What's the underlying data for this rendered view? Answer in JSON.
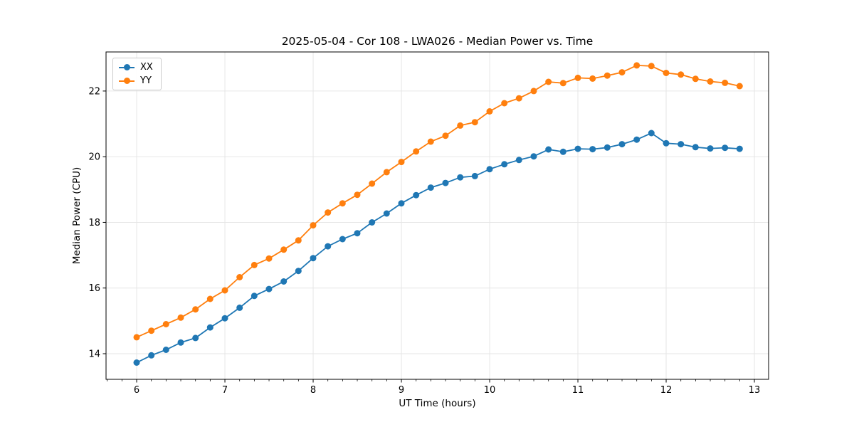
{
  "chart_data": {
    "type": "line",
    "title": "2025-05-04 - Cor 108 - LWA026 - Median Power vs. Time",
    "xlabel": "UT Time (hours)",
    "ylabel": "Median Power (CPU)",
    "grid": true,
    "legend_position": "upper-left",
    "xlim": [
      5.653,
      13.161
    ],
    "ylim": [
      13.22,
      23.19
    ],
    "x_ticks": [
      6,
      7,
      8,
      9,
      10,
      11,
      12,
      13
    ],
    "y_ticks": [
      14,
      16,
      18,
      20,
      22
    ],
    "x_minor_subdivisions": 6,
    "x": [
      6.0,
      6.167,
      6.333,
      6.5,
      6.667,
      6.833,
      7.0,
      7.167,
      7.333,
      7.5,
      7.667,
      7.833,
      8.0,
      8.167,
      8.333,
      8.5,
      8.667,
      8.833,
      9.0,
      9.167,
      9.333,
      9.5,
      9.667,
      9.833,
      10.0,
      10.167,
      10.333,
      10.5,
      10.667,
      10.833,
      11.0,
      11.167,
      11.333,
      11.5,
      11.667,
      11.833,
      12.0,
      12.167,
      12.333,
      12.5,
      12.667,
      12.833
    ],
    "series": [
      {
        "name": "XX",
        "color": "#1f77b4",
        "values": [
          13.73,
          13.95,
          14.12,
          14.34,
          14.48,
          14.8,
          15.08,
          15.4,
          15.76,
          15.97,
          16.2,
          16.52,
          16.91,
          17.27,
          17.49,
          17.67,
          18.0,
          18.27,
          18.58,
          18.83,
          19.06,
          19.2,
          19.37,
          19.41,
          19.62,
          19.77,
          19.9,
          20.01,
          20.22,
          20.15,
          20.24,
          20.23,
          20.28,
          20.38,
          20.52,
          20.72,
          20.41,
          20.38,
          20.29,
          20.25,
          20.27,
          20.24
        ]
      },
      {
        "name": "YY",
        "color": "#ff7f0e",
        "values": [
          14.5,
          14.7,
          14.9,
          15.1,
          15.35,
          15.67,
          15.93,
          16.33,
          16.7,
          16.9,
          17.17,
          17.45,
          17.91,
          18.3,
          18.58,
          18.84,
          19.18,
          19.53,
          19.84,
          20.16,
          20.46,
          20.64,
          20.95,
          21.05,
          21.38,
          21.63,
          21.78,
          22.0,
          22.28,
          22.24,
          22.4,
          22.38,
          22.47,
          22.57,
          22.78,
          22.76,
          22.55,
          22.5,
          22.37,
          22.29,
          22.25,
          22.15
        ]
      }
    ],
    "colors": {
      "grid": "#e6e6e6",
      "spine": "#000000",
      "tick": "#000000",
      "background": "#ffffff"
    }
  }
}
